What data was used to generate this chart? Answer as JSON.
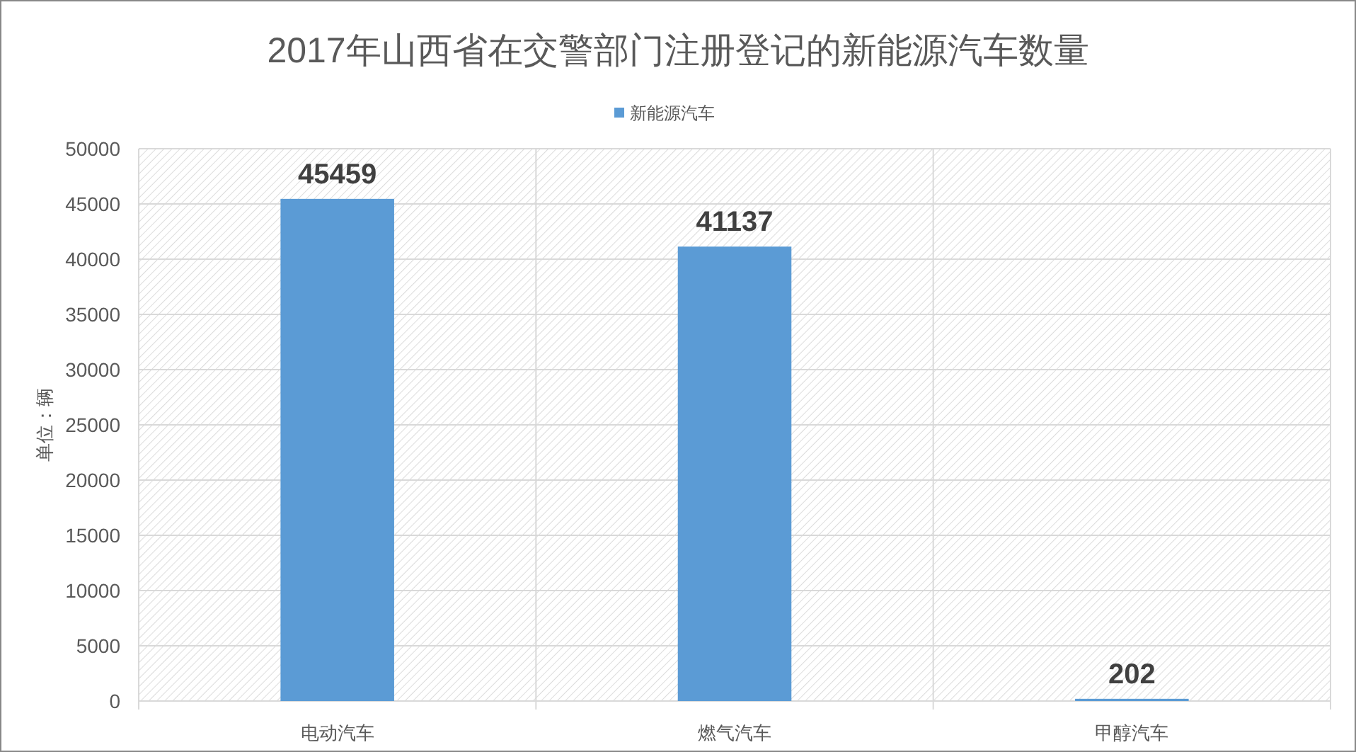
{
  "chart_data": {
    "type": "bar",
    "title": "2017年山西省在交警部门注册登记的新能源汽车数量",
    "ylabel": "单位：辆",
    "categories": [
      "电动汽车",
      "燃气汽车",
      "甲醇汽车"
    ],
    "series": [
      {
        "name": "新能源汽车",
        "color": "#5b9bd5",
        "values": [
          45459,
          41137,
          202
        ]
      }
    ],
    "ylim": [
      0,
      50000
    ],
    "yticks": [
      0,
      5000,
      10000,
      15000,
      20000,
      25000,
      30000,
      35000,
      40000,
      45000,
      50000
    ],
    "grid": true,
    "legend": "top",
    "data_labels": true
  }
}
